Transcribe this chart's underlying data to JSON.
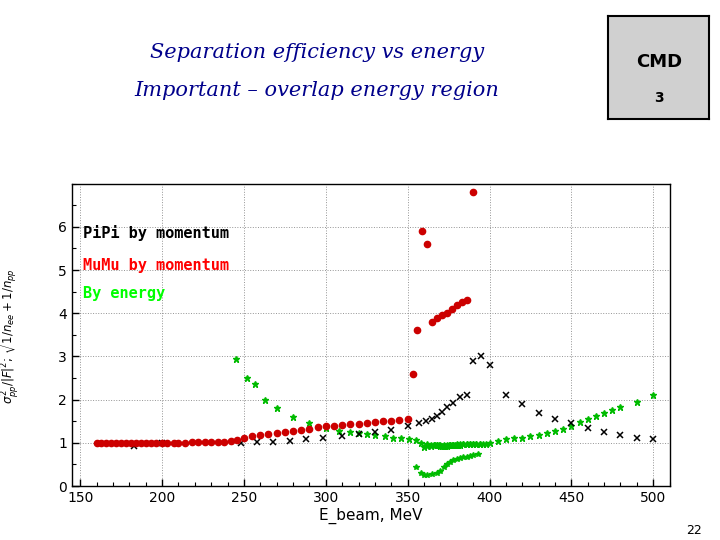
{
  "title_line1": "Separation efficiency vs energy",
  "title_line2": "Important – overlap energy region",
  "xlabel": "E_beam, MeV",
  "ylabel": "σₚₚ²/|F|²; √1/nee+1/npp",
  "xlim": [
    145,
    510
  ],
  "ylim": [
    0,
    7.0
  ],
  "xticks": [
    150,
    200,
    250,
    300,
    350,
    400,
    450,
    500
  ],
  "yticks": [
    0,
    1,
    2,
    3,
    4,
    5,
    6
  ],
  "background_color": "#ffffff",
  "title_color": "#00008B",
  "page_number": "22",
  "pipi_color": "#CC0000",
  "energy_color": "#00BB00",
  "black_color": "#000000",
  "legend_pipi_label": "PiPi by momentum",
  "legend_mumu_label": "MuMu by momentum",
  "legend_energy_label": "By energy",
  "pipi_x": [
    160,
    163,
    166,
    169,
    172,
    175,
    178,
    181,
    184,
    187,
    190,
    193,
    196,
    200,
    203,
    207,
    210,
    214,
    218,
    222,
    226,
    230,
    234,
    238,
    242,
    246,
    250,
    255,
    260,
    265,
    270,
    275,
    280,
    285,
    290,
    295,
    300,
    305,
    310,
    315,
    320,
    325,
    330,
    335,
    340,
    345,
    350,
    353,
    356,
    359,
    362,
    365,
    368,
    371,
    374,
    377,
    380,
    383,
    386,
    390
  ],
  "pipi_y": [
    1.0,
    1.0,
    1.0,
    1.0,
    1.0,
    1.0,
    1.0,
    1.0,
    1.0,
    1.0,
    1.0,
    1.0,
    1.0,
    1.0,
    1.0,
    1.0,
    1.0,
    1.0,
    1.01,
    1.01,
    1.01,
    1.02,
    1.02,
    1.03,
    1.05,
    1.07,
    1.1,
    1.15,
    1.18,
    1.2,
    1.22,
    1.25,
    1.28,
    1.3,
    1.33,
    1.36,
    1.38,
    1.4,
    1.42,
    1.43,
    1.44,
    1.46,
    1.48,
    1.5,
    1.5,
    1.52,
    1.55,
    2.6,
    3.6,
    5.9,
    5.6,
    3.8,
    3.9,
    3.95,
    4.0,
    4.1,
    4.2,
    4.25,
    4.3,
    6.8
  ],
  "black_x": [
    183,
    200,
    248,
    258,
    268,
    278,
    288,
    298,
    310,
    320,
    330,
    340,
    350,
    357,
    361,
    365,
    368,
    371,
    374,
    378,
    382,
    386,
    390,
    395,
    400,
    410,
    420,
    430,
    440,
    450,
    460,
    470,
    480,
    490,
    500
  ],
  "black_y": [
    0.93,
    1.0,
    1.0,
    1.02,
    1.03,
    1.05,
    1.08,
    1.1,
    1.15,
    1.2,
    1.25,
    1.3,
    1.38,
    1.45,
    1.5,
    1.55,
    1.62,
    1.72,
    1.82,
    1.92,
    2.05,
    2.1,
    2.9,
    3.0,
    2.8,
    2.1,
    1.9,
    1.7,
    1.55,
    1.45,
    1.35,
    1.25,
    1.18,
    1.12,
    1.08
  ],
  "energy_x": [
    245,
    252,
    257,
    263,
    270,
    280,
    290,
    300,
    308,
    315,
    320,
    325,
    330,
    336,
    341,
    346,
    351,
    355,
    358,
    362,
    364,
    366,
    367,
    368,
    369,
    370,
    371,
    372,
    373,
    374,
    375,
    376,
    377,
    378,
    379,
    380,
    381,
    382,
    384,
    386,
    388,
    390,
    392,
    394,
    396,
    398,
    400,
    405,
    410,
    415,
    420,
    425,
    430,
    435,
    440,
    445,
    450,
    455,
    460,
    465,
    470,
    475,
    480,
    490,
    500
  ],
  "energy_y": [
    2.95,
    2.5,
    2.35,
    2.0,
    1.8,
    1.6,
    1.45,
    1.35,
    1.28,
    1.25,
    1.22,
    1.2,
    1.18,
    1.15,
    1.12,
    1.1,
    1.08,
    1.06,
    1.0,
    0.97,
    0.96,
    0.96,
    0.95,
    0.94,
    0.94,
    0.93,
    0.93,
    0.93,
    0.93,
    0.93,
    0.94,
    0.95,
    0.95,
    0.95,
    0.95,
    0.96,
    0.96,
    0.96,
    0.97,
    0.97,
    0.97,
    0.97,
    0.97,
    0.97,
    0.97,
    0.97,
    1.0,
    1.05,
    1.08,
    1.1,
    1.12,
    1.15,
    1.18,
    1.22,
    1.27,
    1.33,
    1.4,
    1.47,
    1.55,
    1.62,
    1.68,
    1.75,
    1.82,
    1.95,
    2.1
  ],
  "energy_cluster_x": [
    360,
    362,
    364,
    366,
    368,
    370,
    372,
    374,
    376,
    378,
    380,
    382,
    384,
    386,
    388,
    390,
    392,
    394
  ],
  "energy_cluster_y": [
    0.9,
    0.92,
    0.93,
    0.94,
    0.95,
    0.95,
    0.95,
    0.95,
    0.96,
    0.96,
    0.97,
    0.97,
    0.97,
    0.97,
    0.97,
    0.98,
    0.98,
    0.97
  ],
  "low_energy_green_x": [
    355,
    358,
    360,
    362,
    365,
    368,
    370,
    372,
    374,
    376,
    378,
    380,
    382,
    384,
    386,
    388,
    390,
    393
  ],
  "low_energy_green_y": [
    0.45,
    0.3,
    0.25,
    0.25,
    0.28,
    0.3,
    0.35,
    0.45,
    0.5,
    0.55,
    0.6,
    0.62,
    0.65,
    0.67,
    0.68,
    0.7,
    0.72,
    0.75
  ]
}
